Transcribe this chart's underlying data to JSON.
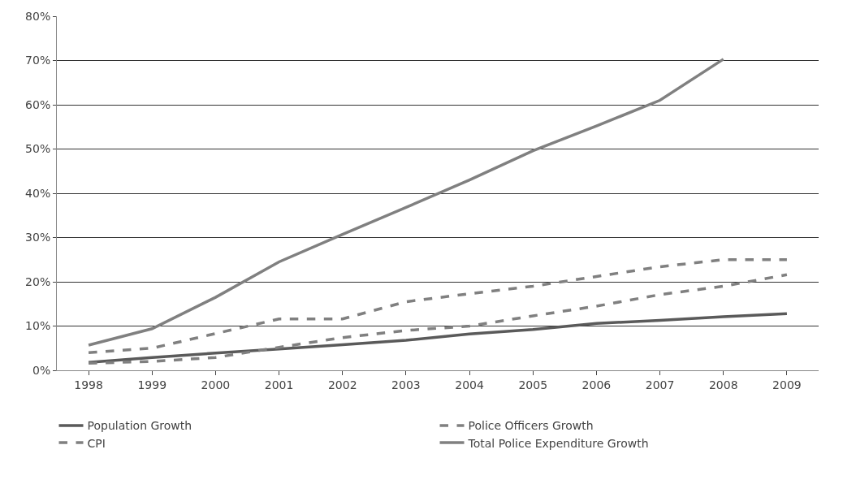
{
  "chart_data": {
    "type": "line",
    "categories": [
      "1998",
      "1999",
      "2000",
      "2001",
      "2002",
      "2003",
      "2004",
      "2005",
      "2006",
      "2007",
      "2008",
      "2009"
    ],
    "series": [
      {
        "name": "Population Growth",
        "color": "#5a5a5a",
        "line_style": "solid",
        "values": [
          1.8,
          2.9,
          3.9,
          4.8,
          5.8,
          6.8,
          8.2,
          9.2,
          10.6,
          11.3,
          12.1,
          12.8
        ]
      },
      {
        "name": "Police Officers Growth",
        "color": "#808080",
        "line_style": "dashed",
        "values": [
          4,
          5,
          8.3,
          11.6,
          11.6,
          15.5,
          17.3,
          19,
          21.2,
          23.4,
          25,
          25
        ]
      },
      {
        "name": "CPI",
        "color": "#808080",
        "line_style": "dashed",
        "values": [
          1.6,
          2,
          2.9,
          5.2,
          7.4,
          9,
          10,
          12.3,
          14.5,
          17.1,
          19,
          21.6
        ]
      },
      {
        "name": "Total Police Expenditure Growth",
        "color": "#808080",
        "line_style": "solid",
        "values": [
          5.7,
          9.4,
          16.5,
          24.5,
          30.7,
          36.8,
          43,
          49.6,
          55.2,
          61,
          70.3,
          null
        ]
      }
    ],
    "ylim": [
      0,
      80
    ],
    "yticks": [
      {
        "value": 0,
        "label": "0%"
      },
      {
        "value": 10,
        "label": "10%"
      },
      {
        "value": 20,
        "label": "20%"
      },
      {
        "value": 30,
        "label": "30%"
      },
      {
        "value": 40,
        "label": "40%"
      },
      {
        "value": 50,
        "label": "50%"
      },
      {
        "value": 60,
        "label": "60%"
      },
      {
        "value": 70,
        "label": "70%"
      },
      {
        "value": 80,
        "label": "80%"
      }
    ],
    "grid": "y",
    "legend": "bottom",
    "marker": "none"
  }
}
